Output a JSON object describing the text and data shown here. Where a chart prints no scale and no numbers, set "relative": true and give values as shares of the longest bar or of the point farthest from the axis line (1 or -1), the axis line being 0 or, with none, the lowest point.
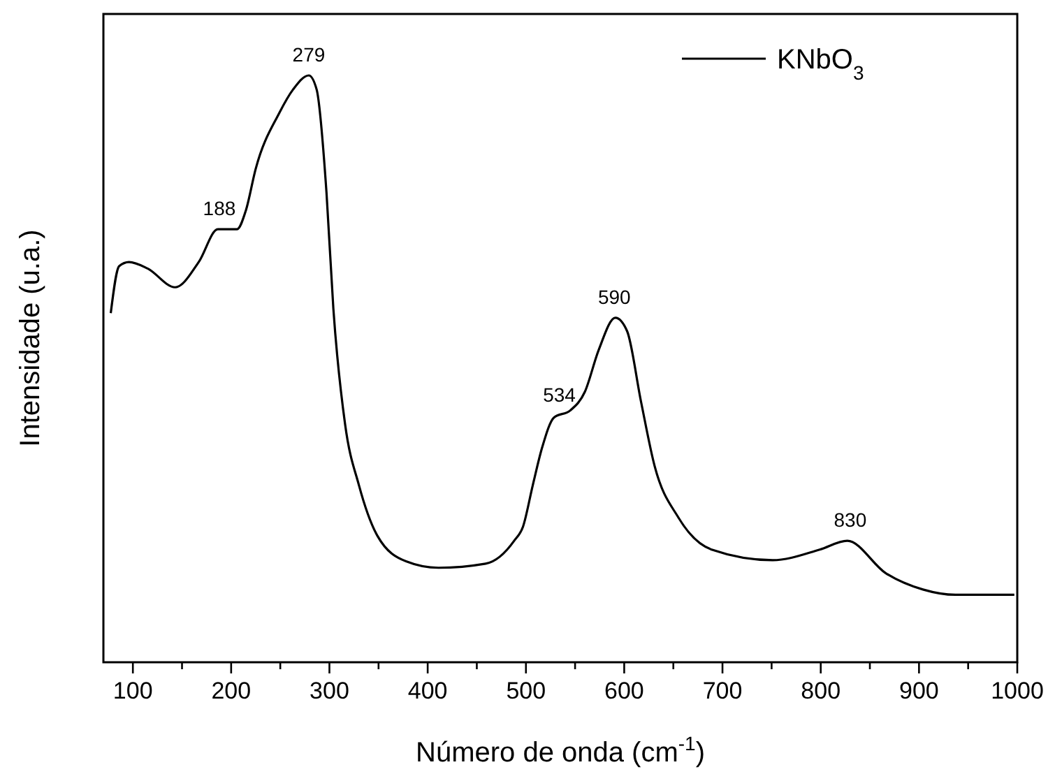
{
  "chart_data": {
    "type": "line",
    "relative": true,
    "xlabel": "Número de onda (cm$^{-1}$)",
    "ylabel": "Intensidade (u.a.)",
    "xlim": [
      70,
      1000
    ],
    "xticks": [
      100,
      {
        "value": 150,
        "label": null
      },
      200,
      {
        "value": 250,
        "label": null
      },
      300,
      {
        "value": 350,
        "label": null
      },
      400,
      {
        "value": 450,
        "label": null
      },
      500,
      {
        "value": 550,
        "label": null
      },
      600,
      {
        "value": 650,
        "label": null
      },
      700,
      {
        "value": 750,
        "label": null
      },
      800,
      {
        "value": 850,
        "label": null
      },
      900,
      {
        "value": 950,
        "label": null
      },
      1000
    ],
    "tick_labels": "x",
    "legend": "top right",
    "grid": false,
    "series": [
      {
        "name": "KNbO$_{3}$",
        "color": "#000000",
        "x": [
          77.5,
          86,
          96,
          115,
          143,
          167,
          186.5,
          206,
          215,
          225,
          249,
          263,
          279,
          287,
          297,
          304,
          316,
          330,
          349,
          378,
          411,
          459,
          488,
          497,
          507,
          516.5,
          528.5,
          545,
          560,
          574,
          591,
          603,
          617,
          631,
          655,
          689,
          751,
          799,
          827,
          866,
          904,
          937,
          997
        ],
        "values": [
          0.595,
          0.675,
          0.682,
          0.671,
          0.639,
          0.682,
          0.738,
          0.738,
          0.77,
          0.841,
          0.936,
          0.976,
          1,
          0.976,
          0.801,
          0.603,
          0.405,
          0.302,
          0.215,
          0.172,
          0.161,
          0.168,
          0.207,
          0.231,
          0.302,
          0.366,
          0.417,
          0.429,
          0.461,
          0.532,
          0.587,
          0.564,
          0.445,
          0.334,
          0.247,
          0.192,
          0.174,
          0.192,
          0.207,
          0.152,
          0.124,
          0.115,
          0.115
        ]
      }
    ],
    "annotations": [
      {
        "text": "188",
        "x": 188,
        "y": 0.738
      },
      {
        "text": "279",
        "x": 279,
        "y": 1
      },
      {
        "text": "534",
        "x": 534,
        "y": 0.42
      },
      {
        "text": "590",
        "x": 590,
        "y": 0.587
      },
      {
        "text": "830",
        "x": 830,
        "y": 0.207
      }
    ]
  }
}
